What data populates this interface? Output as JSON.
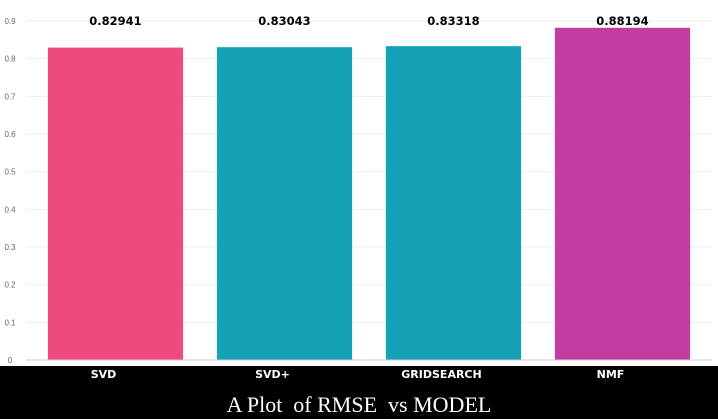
{
  "caption": "A Plot  of RMSE  vs MODEL",
  "chart_data": {
    "type": "bar",
    "title": "",
    "xlabel": "",
    "ylabel": "",
    "categories": [
      "SVD",
      "SVD+",
      "GRIDSEARCH",
      "NMF"
    ],
    "values": [
      0.82941,
      0.83043,
      0.83318,
      0.88194
    ],
    "value_labels": [
      "0.82941",
      "0.83043",
      "0.83318",
      "0.88194"
    ],
    "bar_colors": [
      "#ee4a7c",
      "#15a1b6",
      "#15a1b6",
      "#c23d9f"
    ],
    "ylim": [
      0,
      0.9
    ],
    "yticks": [
      0,
      0.1,
      0.2,
      0.3,
      0.4,
      0.5,
      0.6,
      0.7,
      0.8,
      0.9
    ],
    "ytick_labels": [
      "0",
      "0.1",
      "0.2",
      "0.3",
      "0.4",
      "0.5",
      "0.6",
      "0.7",
      "0.8",
      "0.9"
    ],
    "grid": true,
    "legend": "none",
    "background": "#ffffff",
    "label_band_color": "#000000"
  }
}
